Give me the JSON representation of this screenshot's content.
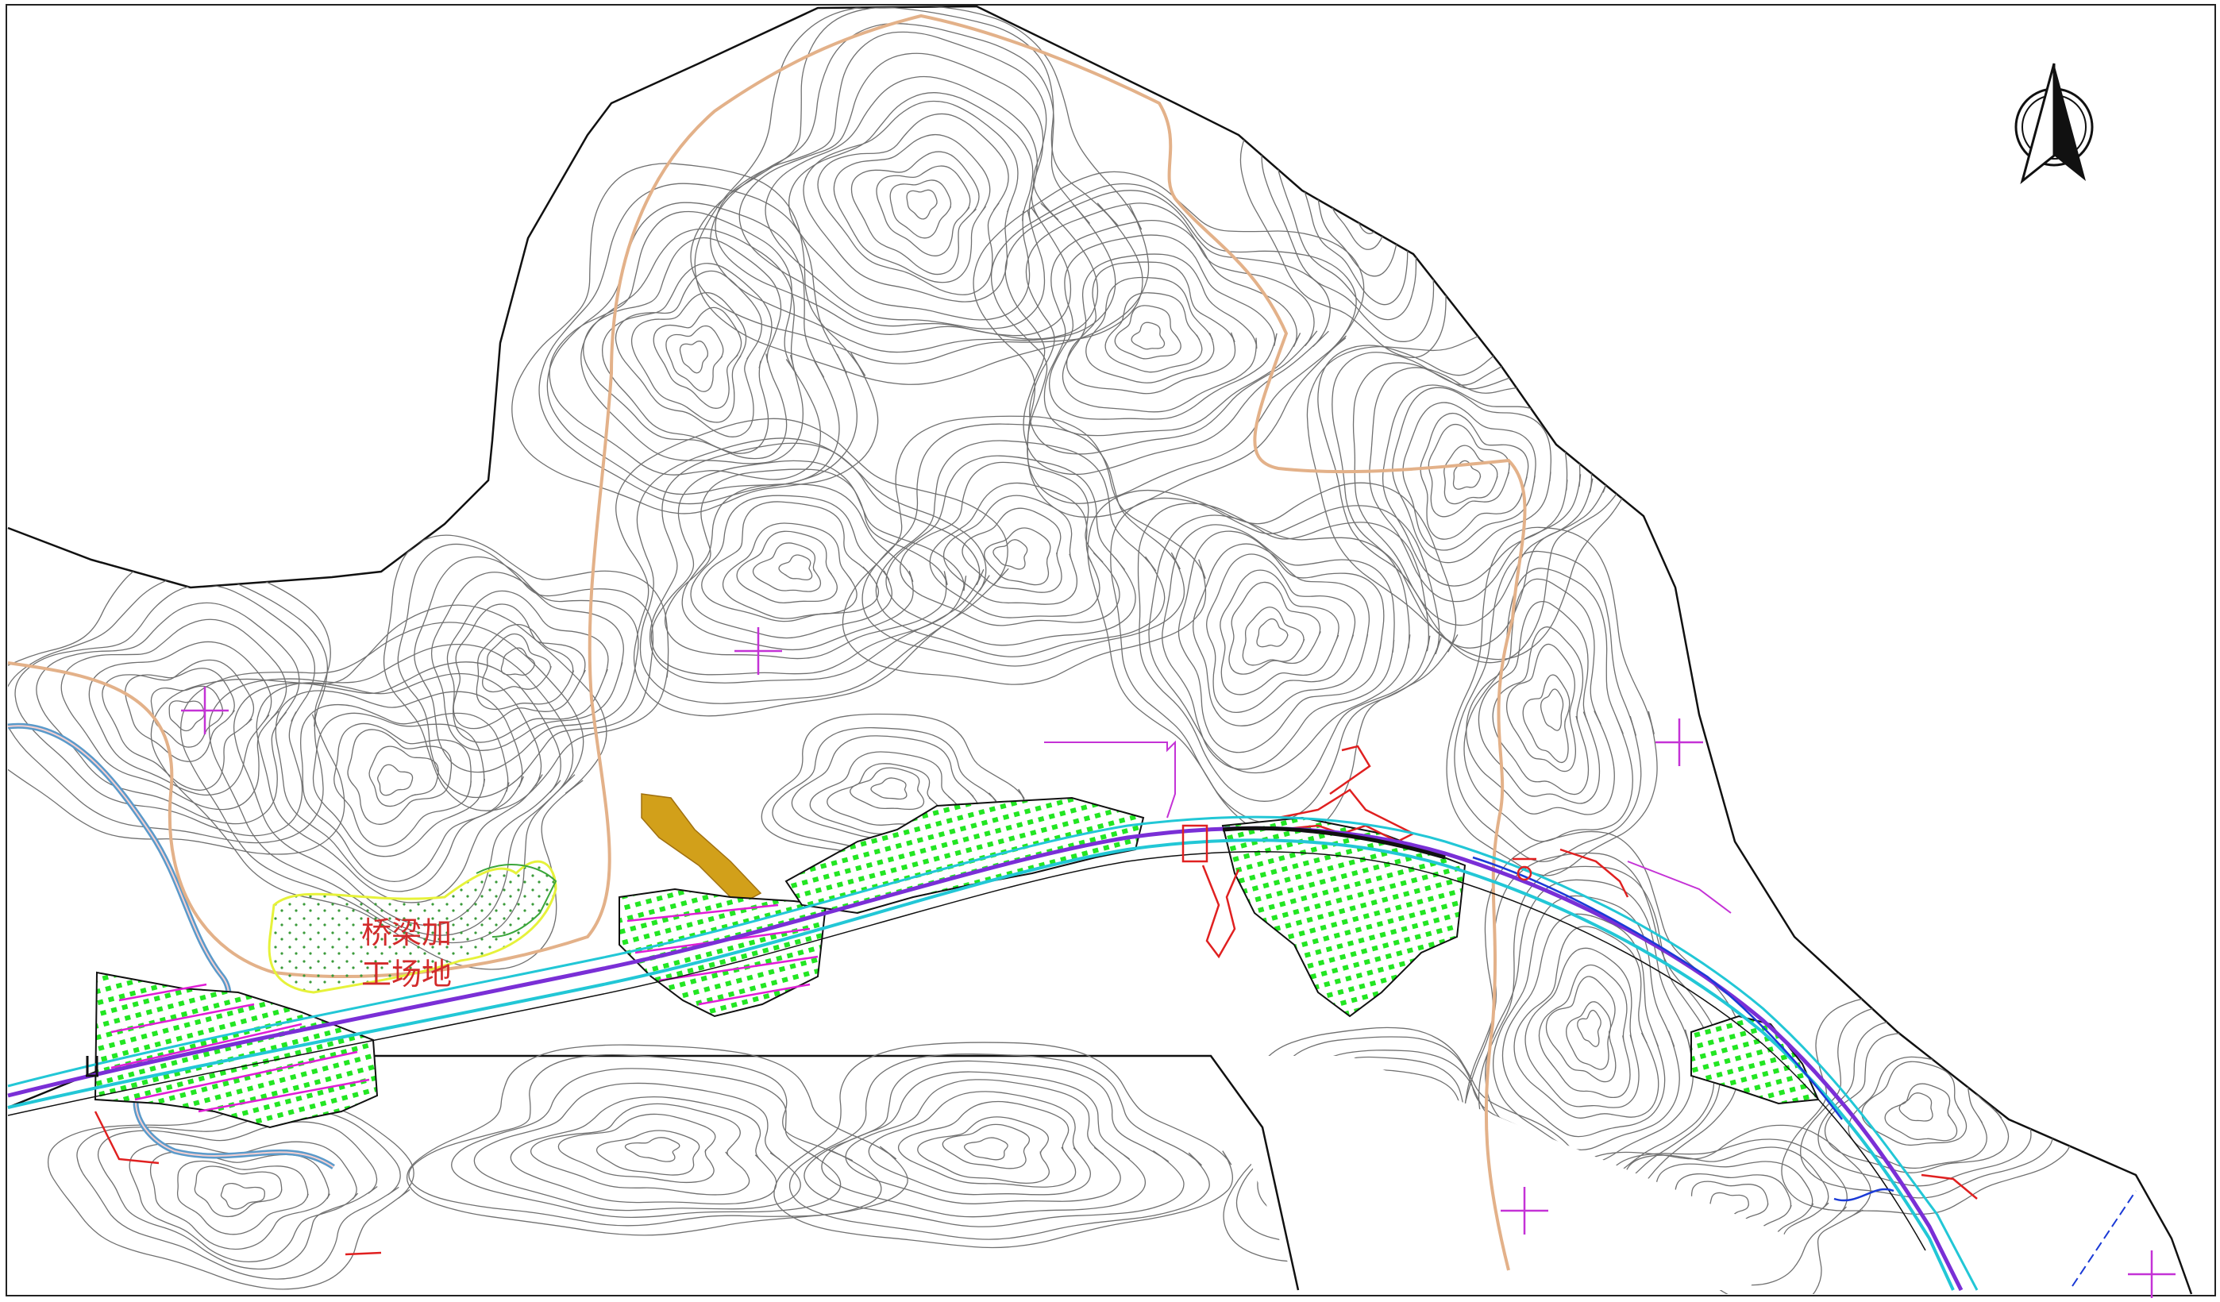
{
  "map": {
    "labels": {
      "line1": "桥梁加",
      "line2": "工场地"
    },
    "icons": {
      "north_arrow": "north-arrow-icon",
      "survey_cross": "survey-cross-icon"
    },
    "colors": {
      "contour": "#707070",
      "boundary": "#111111",
      "route_purple": "#7a2fd6",
      "route_cyan": "#22c7d6",
      "slope_green": "#22e622",
      "hatch_magenta": "#e01dd6",
      "earth_orange": "#d2a01a",
      "river_blue": "#5a9aca",
      "trail_tan": "#e3b189",
      "marker_magenta": "#c432d6",
      "red_line": "#e02020"
    }
  }
}
